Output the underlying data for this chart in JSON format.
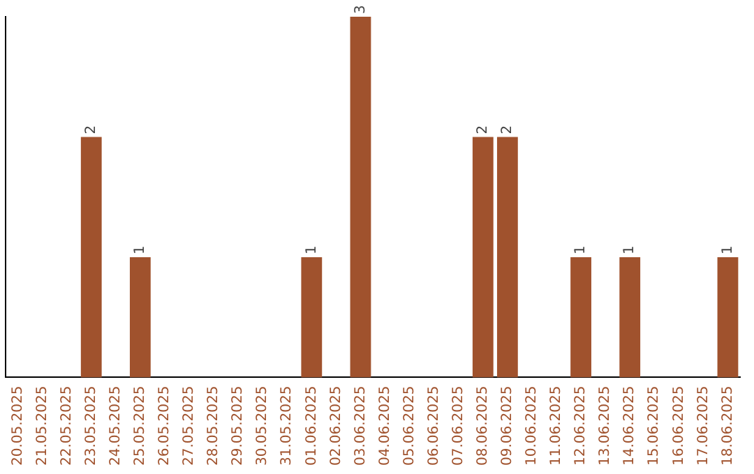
{
  "chart_data": {
    "type": "bar",
    "categories": [
      "20.05.2025",
      "21.05.2025",
      "22.05.2025",
      "23.05.2025",
      "24.05.2025",
      "25.05.2025",
      "26.05.2025",
      "27.05.2025",
      "28.05.2025",
      "29.05.2025",
      "30.05.2025",
      "31.05.2025",
      "01.06.2025",
      "02.06.2025",
      "03.06.2025",
      "04.06.2025",
      "05.06.2025",
      "06.06.2025",
      "07.06.2025",
      "08.06.2025",
      "09.06.2025",
      "10.06.2025",
      "11.06.2025",
      "12.06.2025",
      "13.06.2025",
      "14.06.2025",
      "15.06.2025",
      "16.06.2025",
      "17.06.2025",
      "18.06.2025"
    ],
    "values": [
      0,
      0,
      0,
      2,
      0,
      1,
      0,
      0,
      0,
      0,
      0,
      0,
      1,
      0,
      3,
      0,
      0,
      0,
      0,
      2,
      2,
      0,
      0,
      1,
      0,
      1,
      0,
      0,
      0,
      1
    ],
    "value_labels": [
      null,
      null,
      null,
      "2",
      null,
      "1",
      null,
      null,
      null,
      null,
      null,
      null,
      "1",
      null,
      "3",
      null,
      null,
      null,
      null,
      "2",
      "2",
      null,
      null,
      "1",
      null,
      "1",
      null,
      null,
      null,
      "1"
    ],
    "color": "#a0522d",
    "grid": false,
    "legend": false,
    "tick_labels": "x"
  }
}
